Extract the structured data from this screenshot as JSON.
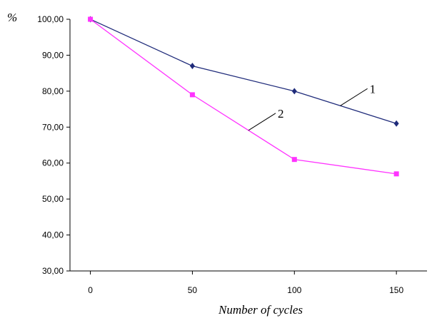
{
  "chart_data": {
    "type": "line",
    "title": "",
    "xlabel": "Number of cycles",
    "ylabel": "%",
    "x": [
      0,
      50,
      100,
      150
    ],
    "x_ticks": [
      "0",
      "50",
      "100",
      "150"
    ],
    "y_ticks": [
      "30,00",
      "40,00",
      "50,00",
      "60,00",
      "70,00",
      "80,00",
      "90,00",
      "100,00"
    ],
    "xlim": [
      -10,
      165
    ],
    "ylim": [
      30,
      100
    ],
    "grid": false,
    "legend": "none",
    "series": [
      {
        "name": "1",
        "values": [
          100,
          87,
          80,
          71
        ],
        "color": "#1f2b7a",
        "marker": "diamond"
      },
      {
        "name": "2",
        "values": [
          100,
          79,
          61,
          57
        ],
        "color": "#ff33ff",
        "marker": "square"
      }
    ],
    "annotations": [
      {
        "text": "1",
        "series": 0
      },
      {
        "text": "2",
        "series": 1
      }
    ]
  }
}
